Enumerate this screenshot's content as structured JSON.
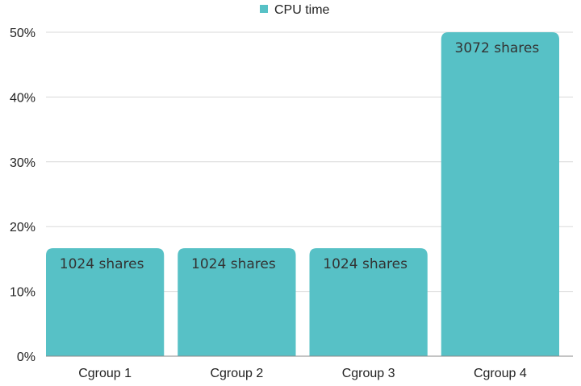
{
  "chart_data": {
    "type": "bar",
    "categories": [
      "Cgroup 1",
      "Cgroup 2",
      "Cgroup 3",
      "Cgroup 4"
    ],
    "series": [
      {
        "name": "CPU time",
        "values": [
          16.67,
          16.67,
          16.67,
          50
        ]
      }
    ],
    "bar_labels": [
      "1024 shares",
      "1024 shares",
      "1024 shares",
      "3072 shares"
    ],
    "y_ticks": [
      "0%",
      "10%",
      "20%",
      "30%",
      "40%",
      "50%"
    ],
    "ylim": [
      0,
      50
    ],
    "y_unit": "%",
    "grid": true,
    "legend_position": "top-center",
    "colors": {
      "bar": "#57C1C6",
      "grid": "#d9d9d9",
      "axis": "#888888"
    }
  }
}
